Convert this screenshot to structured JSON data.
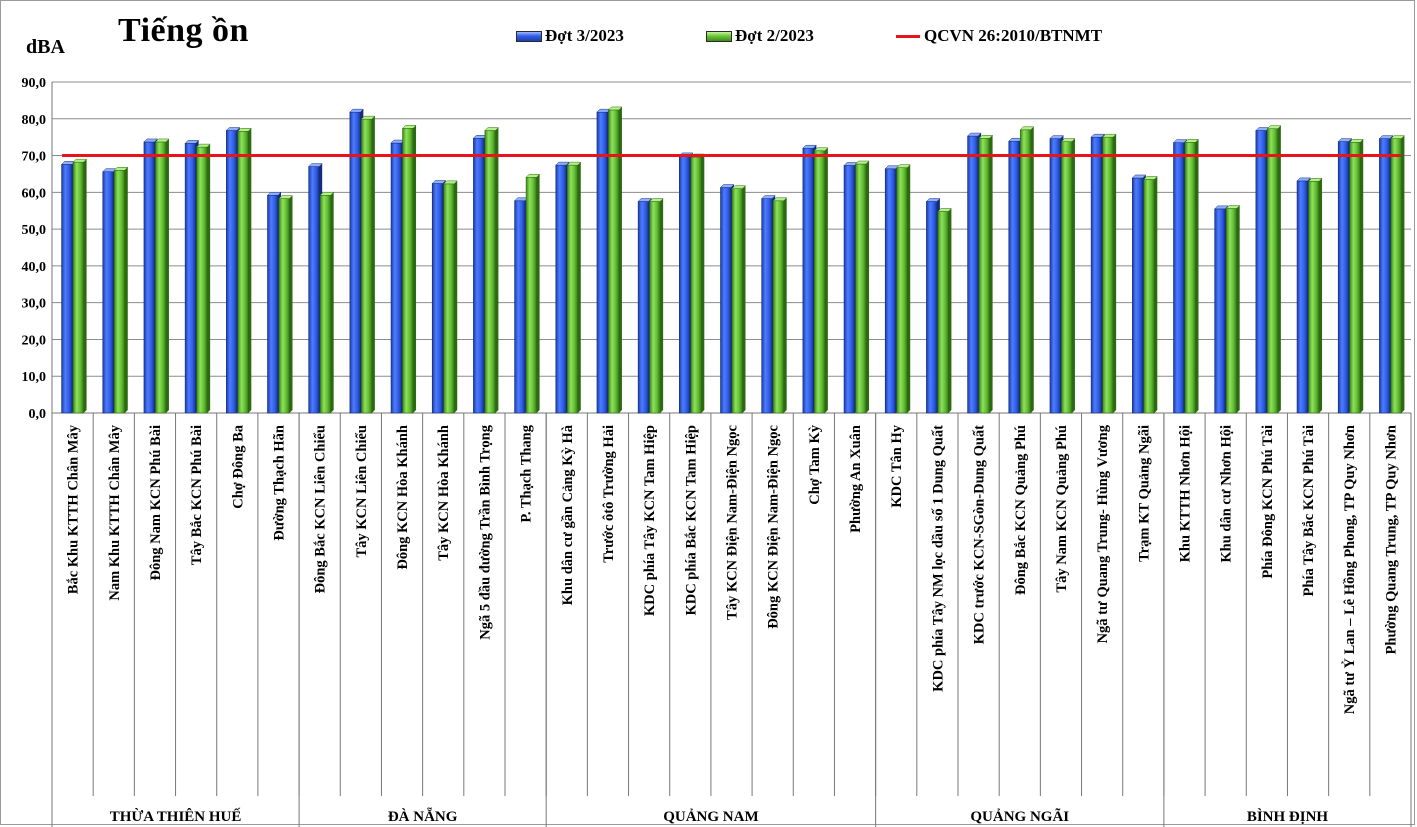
{
  "chart_data": {
    "type": "bar",
    "title": "Tiếng ồn",
    "ylabel": "dBA",
    "ylim": [
      0,
      90
    ],
    "yticks": [
      "0,0",
      "10,0",
      "20,0",
      "30,0",
      "40,0",
      "50,0",
      "60,0",
      "70,0",
      "80,0",
      "90,0"
    ],
    "grid": true,
    "legend_position": "top",
    "categories": [
      "Bắc Khu KTTH Chân Mây",
      "Nam Khu KTTH Chân Mây",
      "Đông Nam KCN Phú Bài",
      "Tây Bắc KCN Phú Bài",
      "Chợ Đông Ba",
      "Đường Thạch Hãn",
      "Đông Bắc KCN Liên Chiểu",
      "Tây KCN Liên Chiểu",
      "Đông KCN Hòa Khánh",
      "Tây KCN Hòa Khánh",
      "Ngã 5 đầu đường Trần Bình Trọng",
      "P. Thạch Thang",
      "Khu dân cư gần Cảng Kỳ Hà",
      "Trước ôtô Trường Hải",
      "KDC phía Tây KCN Tam Hiệp",
      "KDC phía Bắc KCN Tam Hiệp",
      "Tây KCN Điện Nam-Điện Ngọc",
      "Đông KCN Điện Nam-Điện Ngọc",
      "Chợ Tam Kỳ",
      "Phường An Xuân",
      "KDC Tân Hy",
      "KDC phía Tây NM lọc dầu số 1 Dung Quất",
      "KDC trước KCN-SGòn-Dung Quất",
      "Đông Bắc KCN Quảng Phú",
      "Tây Nam KCN Quảng Phú",
      "Ngã tư Quang Trung- Hùng Vương",
      "Trạm KT Quảng Ngãi",
      "Khu KTTH Nhơn Hội",
      "Khu dân cư Nhơn Hội",
      "Phía Đông KCN Phú Tài",
      "Phía Tây Bắc KCN Phú Tài",
      "Ngã tư Ỷ Lan – Lê Hồng Phong, TP Quy Nhơn",
      "Phường Quang Trung, TP Quy Nhơn"
    ],
    "groups": [
      {
        "name": "THỪA THIÊN HUẾ",
        "count": 6
      },
      {
        "name": "ĐÀ NẴNG",
        "count": 6
      },
      {
        "name": "QUẢNG NAM",
        "count": 8
      },
      {
        "name": "QUẢNG NGÃI",
        "count": 7
      },
      {
        "name": "BÌNH ĐỊNH",
        "count": 6
      }
    ],
    "series": [
      {
        "name": "Đợt 3/2023",
        "color": "#2f5ee8",
        "values": [
          67.6,
          65.6,
          73.7,
          73.3,
          76.8,
          59.2,
          67.0,
          81.8,
          73.4,
          62.4,
          74.7,
          57.7,
          67.4,
          81.8,
          57.5,
          69.9,
          61.3,
          58.3,
          72.0,
          67.3,
          66.4,
          57.5,
          75.3,
          73.9,
          74.6,
          75.0,
          63.9,
          73.5,
          55.5,
          76.8,
          63.1,
          73.8,
          74.6
        ]
      },
      {
        "name": "Đợt 2/2023",
        "color": "#6ac63a",
        "values": [
          68.2,
          66.0,
          73.7,
          72.3,
          76.6,
          58.3,
          59.2,
          79.9,
          77.4,
          62.3,
          76.8,
          64.1,
          67.4,
          82.4,
          57.5,
          69.6,
          61.0,
          57.7,
          71.3,
          67.7,
          66.7,
          54.8,
          74.7,
          77.0,
          73.8,
          75.0,
          63.5,
          73.6,
          55.6,
          77.3,
          63.0,
          73.6,
          74.6
        ]
      }
    ],
    "reference_line": {
      "name": "QCVN 26:2010/BTNMT",
      "value": 70,
      "color": "#e8141a"
    }
  }
}
